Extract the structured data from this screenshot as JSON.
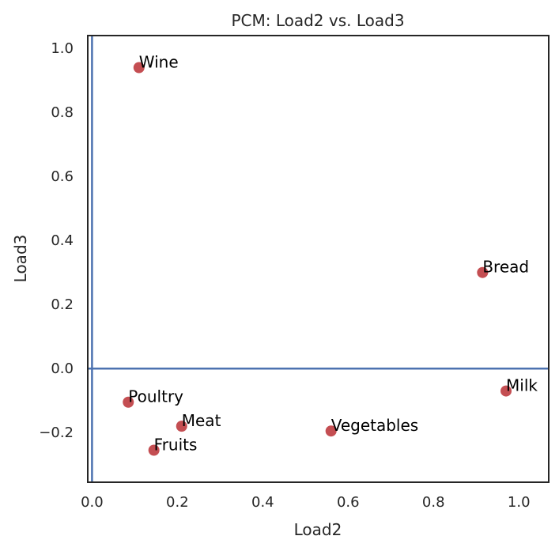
{
  "chart_data": {
    "type": "scatter",
    "title": "PCM: Load2 vs. Load3",
    "xlabel": "Load2",
    "ylabel": "Load3",
    "xlim": [
      -0.01,
      1.07
    ],
    "ylim": [
      -0.355,
      1.04
    ],
    "xticks": [
      0.0,
      0.2,
      0.4,
      0.6,
      0.8,
      1.0
    ],
    "xtick_labels": [
      "0.0",
      "0.2",
      "0.4",
      "0.6",
      "0.8",
      "1.0"
    ],
    "yticks": [
      -0.2,
      0.0,
      0.2,
      0.4,
      0.6,
      0.8,
      1.0
    ],
    "ytick_labels": [
      "−0.2",
      "0.0",
      "0.2",
      "0.4",
      "0.6",
      "0.8",
      "1.0"
    ],
    "reference_lines": {
      "x": 0.0,
      "y": 0.0,
      "color": "#4c72b0"
    },
    "grid": false,
    "marker_color": "#c44e52",
    "points": [
      {
        "label": "Wine",
        "x": 0.11,
        "y": 0.94
      },
      {
        "label": "Bread",
        "x": 0.915,
        "y": 0.3
      },
      {
        "label": "Milk",
        "x": 0.97,
        "y": -0.07
      },
      {
        "label": "Poultry",
        "x": 0.085,
        "y": -0.105
      },
      {
        "label": "Meat",
        "x": 0.21,
        "y": -0.18
      },
      {
        "label": "Vegetables",
        "x": 0.56,
        "y": -0.195
      },
      {
        "label": "Fruits",
        "x": 0.145,
        "y": -0.255
      }
    ]
  }
}
